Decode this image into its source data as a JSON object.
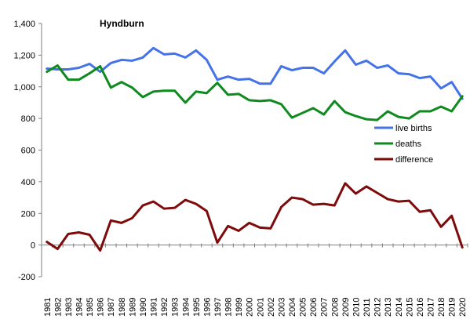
{
  "chart_data": {
    "type": "line",
    "title": "Hyndburn",
    "xlabel": "",
    "ylabel": "",
    "ylim": [
      -200,
      1400
    ],
    "yticks": [
      -200,
      0,
      200,
      400,
      600,
      800,
      1000,
      1200,
      1400
    ],
    "ytick_labels": [
      "-200",
      "0",
      "200",
      "400",
      "600",
      "800",
      "1,000",
      "1,200",
      "1,400"
    ],
    "categories": [
      "1981",
      "1982",
      "1983",
      "1984",
      "1985",
      "1986",
      "1987",
      "1988",
      "1989",
      "1990",
      "1991",
      "1992",
      "1993",
      "1994",
      "1995",
      "1996",
      "1997",
      "1998",
      "1999",
      "2000",
      "2001",
      "2002",
      "2003",
      "2004",
      "2005",
      "2006",
      "2007",
      "2008",
      "2009",
      "2010",
      "2011",
      "2012",
      "2013",
      "2014",
      "2015",
      "2016",
      "2017",
      "2018",
      "2019",
      "2020"
    ],
    "grid": false,
    "legend_position": "right",
    "series": [
      {
        "name": "live births",
        "color": "#4472E8",
        "values": [
          1115,
          1110,
          1110,
          1120,
          1145,
          1095,
          1150,
          1170,
          1165,
          1185,
          1245,
          1205,
          1210,
          1185,
          1230,
          1170,
          1045,
          1065,
          1045,
          1050,
          1020,
          1020,
          1130,
          1105,
          1120,
          1120,
          1085,
          1160,
          1230,
          1140,
          1165,
          1120,
          1135,
          1085,
          1080,
          1055,
          1065,
          990,
          1030,
          925
        ]
      },
      {
        "name": "deaths",
        "color": "#0E8A1E",
        "values": [
          1095,
          1135,
          1045,
          1045,
          1085,
          1130,
          995,
          1030,
          995,
          935,
          970,
          975,
          975,
          900,
          970,
          960,
          1025,
          950,
          955,
          915,
          910,
          915,
          890,
          805,
          835,
          865,
          825,
          910,
          840,
          815,
          795,
          790,
          845,
          810,
          800,
          845,
          845,
          875,
          845,
          940
        ]
      },
      {
        "name": "difference",
        "color": "#7E0A0A",
        "values": [
          20,
          -25,
          70,
          80,
          65,
          -35,
          155,
          140,
          170,
          250,
          275,
          230,
          235,
          285,
          260,
          215,
          15,
          120,
          90,
          140,
          110,
          105,
          240,
          300,
          290,
          255,
          260,
          250,
          390,
          325,
          370,
          330,
          290,
          275,
          280,
          210,
          220,
          115,
          185,
          -15
        ]
      }
    ]
  }
}
